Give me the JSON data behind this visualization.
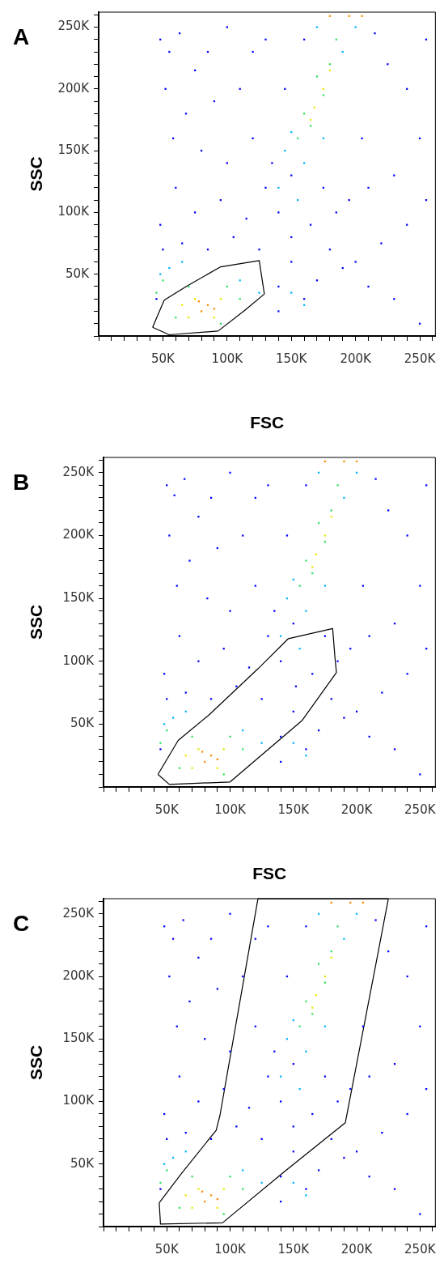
{
  "chart_data": [
    {
      "type": "scatter",
      "title": "A",
      "xlabel": "FSC",
      "ylabel": "SSC",
      "xlim": [
        0,
        262144
      ],
      "ylim": [
        0,
        262144
      ],
      "marker": "square",
      "xticks": [
        {
          "value": 0,
          "label": null
        },
        {
          "value": 10000,
          "label": null
        },
        {
          "value": 20000,
          "label": null
        },
        {
          "value": 30000,
          "label": null
        },
        {
          "value": 40000,
          "label": null
        },
        {
          "value": 50000,
          "label": "50K"
        },
        {
          "value": 60000,
          "label": null
        },
        {
          "value": 70000,
          "label": null
        },
        {
          "value": 80000,
          "label": null
        },
        {
          "value": 90000,
          "label": null
        },
        {
          "value": 100000,
          "label": "100K"
        },
        {
          "value": 110000,
          "label": null
        },
        {
          "value": 120000,
          "label": null
        },
        {
          "value": 130000,
          "label": null
        },
        {
          "value": 140000,
          "label": null
        },
        {
          "value": 150000,
          "label": "150K"
        },
        {
          "value": 160000,
          "label": null
        },
        {
          "value": 170000,
          "label": null
        },
        {
          "value": 180000,
          "label": null
        },
        {
          "value": 190000,
          "label": null
        },
        {
          "value": 200000,
          "label": "200K"
        },
        {
          "value": 210000,
          "label": null
        },
        {
          "value": 220000,
          "label": null
        },
        {
          "value": 230000,
          "label": null
        },
        {
          "value": 240000,
          "label": null
        },
        {
          "value": 250000,
          "label": "250K"
        },
        {
          "value": 260000,
          "label": null
        }
      ],
      "yticks": [
        {
          "value": 0,
          "label": null
        },
        {
          "value": 10000,
          "label": null
        },
        {
          "value": 20000,
          "label": null
        },
        {
          "value": 30000,
          "label": null
        },
        {
          "value": 40000,
          "label": null
        },
        {
          "value": 50000,
          "label": "50K"
        },
        {
          "value": 60000,
          "label": null
        },
        {
          "value": 70000,
          "label": null
        },
        {
          "value": 80000,
          "label": null
        },
        {
          "value": 90000,
          "label": null
        },
        {
          "value": 100000,
          "label": "100K"
        },
        {
          "value": 110000,
          "label": null
        },
        {
          "value": 120000,
          "label": null
        },
        {
          "value": 130000,
          "label": null
        },
        {
          "value": 140000,
          "label": null
        },
        {
          "value": 150000,
          "label": "150K"
        },
        {
          "value": 160000,
          "label": null
        },
        {
          "value": 170000,
          "label": null
        },
        {
          "value": 180000,
          "label": null
        },
        {
          "value": 190000,
          "label": null
        },
        {
          "value": 200000,
          "label": "200K"
        },
        {
          "value": 210000,
          "label": null
        },
        {
          "value": 220000,
          "label": null
        },
        {
          "value": 230000,
          "label": null
        },
        {
          "value": 240000,
          "label": null
        },
        {
          "value": 250000,
          "label": "250K"
        },
        {
          "value": 260000,
          "label": null
        }
      ],
      "series": [
        {
          "color": "#0000ff",
          "x": [
            48000,
            55000,
            63000,
            75000,
            52000,
            68000,
            90000,
            110000,
            58000,
            80000,
            100000,
            120000,
            130000,
            60000,
            75000,
            95000,
            115000,
            140000,
            150000,
            165000,
            180000,
            200000,
            220000,
            240000,
            255000,
            230000,
            250000,
            240000,
            225000,
            255000,
            215000,
            205000,
            195000,
            175000,
            150000,
            160000,
            140000,
            170000,
            190000,
            210000,
            230000,
            250000,
            48000,
            50000,
            65000,
            85000,
            105000,
            125000,
            140000,
            135000,
            145000,
            160000,
            130000,
            100000,
            185000,
            210000,
            120000,
            85000,
            150000,
            45000
          ],
          "values": [
            240000,
            230000,
            245000,
            215000,
            200000,
            180000,
            190000,
            200000,
            160000,
            150000,
            140000,
            160000,
            120000,
            120000,
            100000,
            110000,
            95000,
            100000,
            80000,
            90000,
            70000,
            60000,
            75000,
            90000,
            110000,
            130000,
            160000,
            200000,
            220000,
            240000,
            245000,
            160000,
            110000,
            120000,
            60000,
            30000,
            20000,
            45000,
            55000,
            40000,
            30000,
            10000,
            90000,
            70000,
            75000,
            70000,
            80000,
            70000,
            40000,
            140000,
            200000,
            240000,
            240000,
            250000,
            100000,
            120000,
            230000,
            230000,
            130000,
            30000
          ]
        },
        {
          "color": "#00b4ff",
          "x": [
            145000,
            150000,
            160000,
            175000,
            190000,
            200000,
            170000,
            140000,
            155000,
            48000,
            55000,
            65000,
            110000,
            125000,
            150000,
            160000
          ],
          "values": [
            150000,
            165000,
            140000,
            160000,
            230000,
            250000,
            250000,
            120000,
            110000,
            50000,
            55000,
            60000,
            45000,
            35000,
            35000,
            25000
          ]
        },
        {
          "color": "#30e060",
          "x": [
            160000,
            170000,
            180000,
            185000,
            155000,
            165000,
            175000,
            50000,
            45000,
            60000,
            70000,
            100000,
            110000,
            95000
          ],
          "values": [
            180000,
            210000,
            220000,
            240000,
            160000,
            170000,
            195000,
            45000,
            35000,
            15000,
            40000,
            40000,
            30000,
            10000
          ]
        },
        {
          "color": "#e8e800",
          "x": [
            168000,
            175000,
            180000,
            165000,
            65000,
            75000,
            95000,
            90000,
            70000
          ],
          "values": [
            185000,
            200000,
            215000,
            175000,
            25000,
            30000,
            30000,
            15000,
            15000
          ]
        },
        {
          "color": "#ff8c00",
          "x": [
            80000,
            85000,
            90000,
            78000,
            180000,
            195000,
            205000
          ],
          "values": [
            20000,
            25000,
            22000,
            28000,
            259000,
            259000,
            259000
          ]
        },
        {
          "type": "line",
          "color": "#000000",
          "marker": "none",
          "line_style": "solid",
          "x": [
            42000,
            51000,
            68000,
            95000,
            125000,
            129000
          ],
          "values": [
            7000,
            29000,
            40000,
            56000,
            61000,
            34000
          ]
        },
        {
          "type": "line",
          "color": "#000000",
          "marker": "none",
          "line_style": "solid",
          "x": [
            42000,
            55000,
            93000,
            114000,
            129000
          ],
          "values": [
            7000,
            1000,
            4000,
            21000,
            34000
          ]
        }
      ]
    },
    {
      "type": "scatter",
      "title": "B",
      "xlabel": "FSC",
      "ylabel": "SSC",
      "xlim": [
        0,
        262144
      ],
      "ylim": [
        0,
        262144
      ],
      "marker": "square",
      "xticks": [
        {
          "value": 0,
          "label": null
        },
        {
          "value": 10000,
          "label": null
        },
        {
          "value": 20000,
          "label": null
        },
        {
          "value": 30000,
          "label": null
        },
        {
          "value": 40000,
          "label": null
        },
        {
          "value": 50000,
          "label": "50K"
        },
        {
          "value": 60000,
          "label": null
        },
        {
          "value": 70000,
          "label": null
        },
        {
          "value": 80000,
          "label": null
        },
        {
          "value": 90000,
          "label": null
        },
        {
          "value": 100000,
          "label": "100K"
        },
        {
          "value": 110000,
          "label": null
        },
        {
          "value": 120000,
          "label": null
        },
        {
          "value": 130000,
          "label": null
        },
        {
          "value": 140000,
          "label": null
        },
        {
          "value": 150000,
          "label": "150K"
        },
        {
          "value": 160000,
          "label": null
        },
        {
          "value": 170000,
          "label": null
        },
        {
          "value": 180000,
          "label": null
        },
        {
          "value": 190000,
          "label": null
        },
        {
          "value": 200000,
          "label": "200K"
        },
        {
          "value": 210000,
          "label": null
        },
        {
          "value": 220000,
          "label": null
        },
        {
          "value": 230000,
          "label": null
        },
        {
          "value": 240000,
          "label": null
        },
        {
          "value": 250000,
          "label": "250K"
        },
        {
          "value": 260000,
          "label": null
        }
      ],
      "yticks": [
        {
          "value": 0,
          "label": null
        },
        {
          "value": 10000,
          "label": null
        },
        {
          "value": 20000,
          "label": null
        },
        {
          "value": 30000,
          "label": null
        },
        {
          "value": 40000,
          "label": null
        },
        {
          "value": 50000,
          "label": "50K"
        },
        {
          "value": 60000,
          "label": null
        },
        {
          "value": 70000,
          "label": null
        },
        {
          "value": 80000,
          "label": null
        },
        {
          "value": 90000,
          "label": null
        },
        {
          "value": 100000,
          "label": "100K"
        },
        {
          "value": 110000,
          "label": null
        },
        {
          "value": 120000,
          "label": null
        },
        {
          "value": 130000,
          "label": null
        },
        {
          "value": 140000,
          "label": null
        },
        {
          "value": 150000,
          "label": "150K"
        },
        {
          "value": 160000,
          "label": null
        },
        {
          "value": 170000,
          "label": null
        },
        {
          "value": 180000,
          "label": null
        },
        {
          "value": 190000,
          "label": null
        },
        {
          "value": 200000,
          "label": "200K"
        },
        {
          "value": 210000,
          "label": null
        },
        {
          "value": 220000,
          "label": null
        },
        {
          "value": 230000,
          "label": null
        },
        {
          "value": 240000,
          "label": null
        },
        {
          "value": 250000,
          "label": "250K"
        },
        {
          "value": 260000,
          "label": null
        }
      ],
      "series": [
        {
          "color": "#0000ff",
          "x": [
            50000,
            56000,
            64000,
            75000,
            52000,
            68000,
            90000,
            110000,
            58000,
            82000,
            100000,
            120000,
            130000,
            60000,
            75000,
            95000,
            115000,
            140000,
            152000,
            165000,
            180000,
            200000,
            220000,
            240000,
            255000,
            230000,
            250000,
            240000,
            225000,
            255000,
            215000,
            205000,
            195000,
            175000,
            150000,
            160000,
            140000,
            170000,
            190000,
            210000,
            230000,
            250000,
            48000,
            50000,
            65000,
            85000,
            105000,
            125000,
            140000,
            135000,
            145000,
            160000,
            130000,
            100000,
            185000,
            210000,
            120000,
            85000,
            150000,
            45000
          ],
          "values": [
            240000,
            232000,
            245000,
            215000,
            200000,
            180000,
            190000,
            200000,
            160000,
            150000,
            140000,
            160000,
            120000,
            120000,
            100000,
            110000,
            95000,
            100000,
            80000,
            90000,
            70000,
            60000,
            75000,
            90000,
            110000,
            130000,
            160000,
            200000,
            220000,
            240000,
            245000,
            160000,
            110000,
            120000,
            60000,
            30000,
            20000,
            45000,
            55000,
            40000,
            30000,
            10000,
            90000,
            70000,
            75000,
            70000,
            80000,
            70000,
            40000,
            140000,
            200000,
            240000,
            240000,
            250000,
            100000,
            120000,
            230000,
            230000,
            130000,
            30000
          ]
        },
        {
          "color": "#00b4ff",
          "x": [
            145000,
            150000,
            160000,
            175000,
            190000,
            200000,
            170000,
            140000,
            155000,
            48000,
            55000,
            65000,
            110000,
            125000,
            150000,
            160000
          ],
          "values": [
            150000,
            165000,
            140000,
            160000,
            230000,
            250000,
            250000,
            120000,
            110000,
            50000,
            55000,
            60000,
            45000,
            35000,
            35000,
            25000
          ]
        },
        {
          "color": "#30e060",
          "x": [
            160000,
            170000,
            180000,
            185000,
            155000,
            165000,
            175000,
            50000,
            45000,
            60000,
            70000,
            100000,
            110000,
            95000
          ],
          "values": [
            180000,
            210000,
            220000,
            240000,
            160000,
            170000,
            195000,
            45000,
            35000,
            15000,
            40000,
            40000,
            30000,
            10000
          ]
        },
        {
          "color": "#e8e800",
          "x": [
            168000,
            175000,
            180000,
            165000,
            65000,
            75000,
            95000,
            90000,
            70000
          ],
          "values": [
            185000,
            200000,
            215000,
            175000,
            25000,
            30000,
            30000,
            15000,
            15000
          ]
        },
        {
          "color": "#ff8c00",
          "x": [
            80000,
            85000,
            90000,
            78000,
            175000,
            190000,
            200000
          ],
          "values": [
            20000,
            25000,
            22000,
            28000,
            259000,
            259000,
            259000
          ]
        },
        {
          "type": "line",
          "color": "#000000",
          "marker": "none",
          "line_style": "solid",
          "x": [
            43000,
            59000,
            83000,
            122000,
            146000,
            181000,
            183000,
            184000
          ],
          "values": [
            10000,
            37000,
            57000,
            94000,
            118000,
            126000,
            101000,
            91000
          ]
        },
        {
          "type": "line",
          "color": "#000000",
          "marker": "none",
          "line_style": "solid",
          "x": [
            43000,
            52000,
            100000,
            157000,
            184000
          ],
          "values": [
            10000,
            2000,
            4000,
            53000,
            91000
          ]
        }
      ]
    },
    {
      "type": "scatter",
      "title": "C",
      "ylabel": "SSC",
      "xlim": [
        0,
        262144
      ],
      "ylim": [
        0,
        262144
      ],
      "marker": "square",
      "xticks": [
        {
          "value": 0,
          "label": null
        },
        {
          "value": 10000,
          "label": null
        },
        {
          "value": 20000,
          "label": null
        },
        {
          "value": 30000,
          "label": null
        },
        {
          "value": 40000,
          "label": null
        },
        {
          "value": 50000,
          "label": "50K"
        },
        {
          "value": 60000,
          "label": null
        },
        {
          "value": 70000,
          "label": null
        },
        {
          "value": 80000,
          "label": null
        },
        {
          "value": 90000,
          "label": null
        },
        {
          "value": 100000,
          "label": "100K"
        },
        {
          "value": 110000,
          "label": null
        },
        {
          "value": 120000,
          "label": null
        },
        {
          "value": 130000,
          "label": null
        },
        {
          "value": 140000,
          "label": null
        },
        {
          "value": 150000,
          "label": "150K"
        },
        {
          "value": 160000,
          "label": null
        },
        {
          "value": 170000,
          "label": null
        },
        {
          "value": 180000,
          "label": null
        },
        {
          "value": 190000,
          "label": null
        },
        {
          "value": 200000,
          "label": "200K"
        },
        {
          "value": 210000,
          "label": null
        },
        {
          "value": 220000,
          "label": null
        },
        {
          "value": 230000,
          "label": null
        },
        {
          "value": 240000,
          "label": null
        },
        {
          "value": 250000,
          "label": "250K"
        },
        {
          "value": 260000,
          "label": null
        }
      ],
      "yticks": [
        {
          "value": 0,
          "label": null
        },
        {
          "value": 10000,
          "label": null
        },
        {
          "value": 20000,
          "label": null
        },
        {
          "value": 30000,
          "label": null
        },
        {
          "value": 40000,
          "label": null
        },
        {
          "value": 50000,
          "label": "50K"
        },
        {
          "value": 60000,
          "label": null
        },
        {
          "value": 70000,
          "label": null
        },
        {
          "value": 80000,
          "label": null
        },
        {
          "value": 90000,
          "label": null
        },
        {
          "value": 100000,
          "label": "100K"
        },
        {
          "value": 110000,
          "label": null
        },
        {
          "value": 120000,
          "label": null
        },
        {
          "value": 130000,
          "label": null
        },
        {
          "value": 140000,
          "label": null
        },
        {
          "value": 150000,
          "label": "150K"
        },
        {
          "value": 160000,
          "label": null
        },
        {
          "value": 170000,
          "label": null
        },
        {
          "value": 180000,
          "label": null
        },
        {
          "value": 190000,
          "label": null
        },
        {
          "value": 200000,
          "label": "200K"
        },
        {
          "value": 210000,
          "label": null
        },
        {
          "value": 220000,
          "label": null
        },
        {
          "value": 230000,
          "label": null
        },
        {
          "value": 240000,
          "label": null
        },
        {
          "value": 250000,
          "label": "250K"
        },
        {
          "value": 260000,
          "label": null
        }
      ],
      "series": [
        {
          "color": "#0000ff",
          "x": [
            48000,
            55000,
            63000,
            75000,
            52000,
            68000,
            90000,
            110000,
            58000,
            80000,
            100000,
            120000,
            130000,
            60000,
            75000,
            95000,
            115000,
            140000,
            150000,
            165000,
            180000,
            200000,
            220000,
            240000,
            255000,
            230000,
            250000,
            240000,
            225000,
            255000,
            215000,
            205000,
            195000,
            175000,
            150000,
            160000,
            140000,
            170000,
            190000,
            210000,
            230000,
            250000,
            48000,
            50000,
            65000,
            85000,
            105000,
            125000,
            140000,
            135000,
            145000,
            160000,
            130000,
            100000,
            185000,
            210000,
            120000,
            85000,
            150000,
            45000
          ],
          "values": [
            240000,
            230000,
            245000,
            215000,
            200000,
            180000,
            190000,
            200000,
            160000,
            150000,
            140000,
            160000,
            120000,
            120000,
            100000,
            110000,
            95000,
            100000,
            80000,
            90000,
            70000,
            60000,
            75000,
            90000,
            110000,
            130000,
            160000,
            200000,
            220000,
            240000,
            245000,
            160000,
            110000,
            120000,
            60000,
            30000,
            20000,
            45000,
            55000,
            40000,
            30000,
            10000,
            90000,
            70000,
            75000,
            70000,
            80000,
            70000,
            40000,
            140000,
            200000,
            240000,
            240000,
            250000,
            100000,
            120000,
            230000,
            230000,
            130000,
            30000
          ]
        },
        {
          "color": "#00b4ff",
          "x": [
            145000,
            150000,
            160000,
            175000,
            190000,
            200000,
            170000,
            140000,
            155000,
            48000,
            55000,
            65000,
            110000,
            125000,
            150000,
            160000
          ],
          "values": [
            150000,
            165000,
            140000,
            160000,
            230000,
            250000,
            250000,
            120000,
            110000,
            50000,
            55000,
            60000,
            45000,
            35000,
            35000,
            25000
          ]
        },
        {
          "color": "#30e060",
          "x": [
            160000,
            170000,
            180000,
            185000,
            155000,
            165000,
            175000,
            50000,
            45000,
            60000,
            70000,
            100000,
            110000,
            95000
          ],
          "values": [
            180000,
            210000,
            220000,
            240000,
            160000,
            170000,
            195000,
            45000,
            35000,
            15000,
            40000,
            40000,
            30000,
            10000
          ]
        },
        {
          "color": "#e8e800",
          "x": [
            168000,
            175000,
            180000,
            165000,
            65000,
            75000,
            95000,
            90000,
            70000
          ],
          "values": [
            185000,
            200000,
            215000,
            175000,
            25000,
            30000,
            30000,
            15000,
            15000
          ]
        },
        {
          "color": "#ff8c00",
          "x": [
            80000,
            85000,
            90000,
            78000,
            180000,
            195000,
            205000
          ],
          "values": [
            20000,
            25000,
            22000,
            28000,
            259000,
            259000,
            259000
          ]
        },
        {
          "type": "line",
          "color": "#000000",
          "marker": "none",
          "line_style": "solid",
          "x": [
            44000,
            62000,
            89000,
            92000,
            101000,
            122000,
            225000
          ],
          "values": [
            19000,
            43000,
            77000,
            89000,
            141000,
            262000,
            262000
          ]
        },
        {
          "type": "line",
          "color": "#000000",
          "marker": "none",
          "line_style": "solid",
          "x": [
            44000,
            45000,
            94000,
            143000,
            191000,
            215000,
            225000
          ],
          "values": [
            19000,
            2000,
            3000,
            44000,
            83000,
            209000,
            262000
          ]
        }
      ]
    }
  ]
}
